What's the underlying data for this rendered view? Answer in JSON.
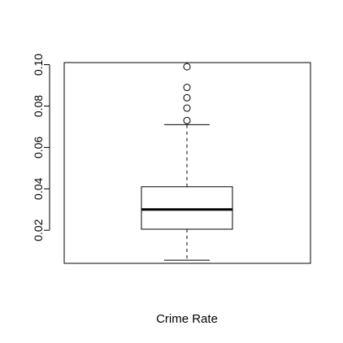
{
  "chart_data": {
    "type": "boxplot",
    "xlabel": "Crime Rate",
    "ylim": [
      0.004,
      0.101
    ],
    "yticks": [
      0.02,
      0.04,
      0.06,
      0.08,
      0.1
    ],
    "ytick_labels": [
      "0.02",
      "0.04",
      "0.06",
      "0.08",
      "0.10"
    ],
    "box": {
      "whisker_low": 0.0055,
      "q1": 0.0205,
      "median": 0.03,
      "q3": 0.041,
      "whisker_high": 0.071
    },
    "outliers": [
      0.073,
      0.079,
      0.084,
      0.089,
      0.099
    ]
  }
}
